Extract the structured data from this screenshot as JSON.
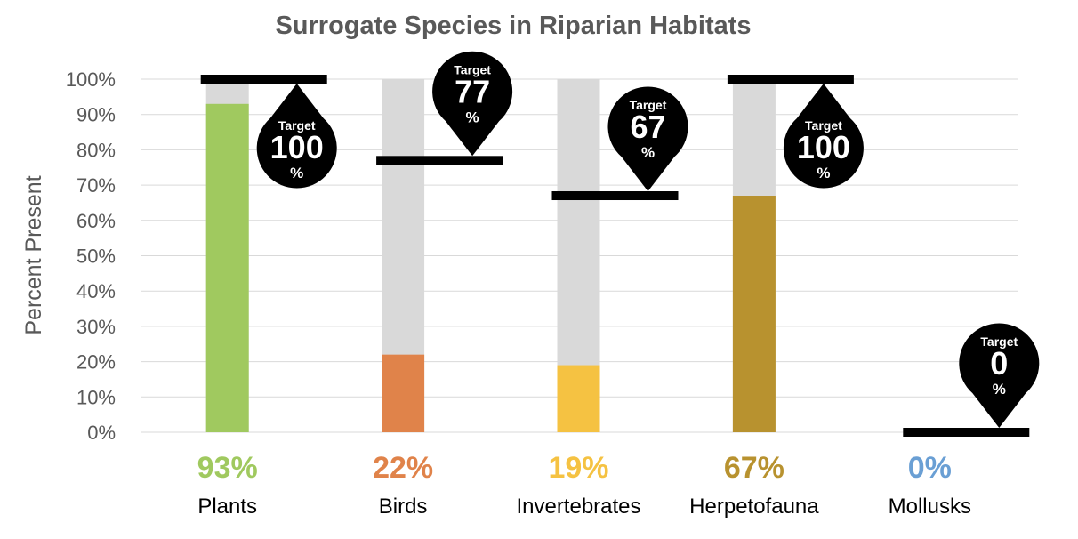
{
  "chart_data": {
    "type": "bar",
    "title": "Surrogate Species in Riparian Habitats",
    "ylabel": "Percent Present",
    "xlabel": "",
    "ylim": [
      0,
      100
    ],
    "yticks": [
      "0%",
      "10%",
      "20%",
      "30%",
      "40%",
      "50%",
      "60%",
      "70%",
      "80%",
      "90%",
      "100%"
    ],
    "grid": true,
    "background_bar_color": "#d9d9d9",
    "target_marker_color": "#000000",
    "target_word": "Target",
    "target_unit": "%",
    "categories": [
      {
        "name": "Plants",
        "value": 93,
        "value_label": "93%",
        "target": 100,
        "target_label": "100",
        "color": "#a0c95f"
      },
      {
        "name": "Birds",
        "value": 22,
        "value_label": "22%",
        "target": 77,
        "target_label": "77",
        "color": "#e0834a"
      },
      {
        "name": "Invertebrates",
        "value": 19,
        "value_label": "19%",
        "target": 67,
        "target_label": "67",
        "color": "#f5c242"
      },
      {
        "name": "Herpetofauna",
        "value": 67,
        "value_label": "67%",
        "target": 100,
        "target_label": "100",
        "color": "#b8922f"
      },
      {
        "name": "Mollusks",
        "value": 0,
        "value_label": "0%",
        "target": 0,
        "target_label": "0",
        "color": "#6a9fd4"
      }
    ]
  }
}
